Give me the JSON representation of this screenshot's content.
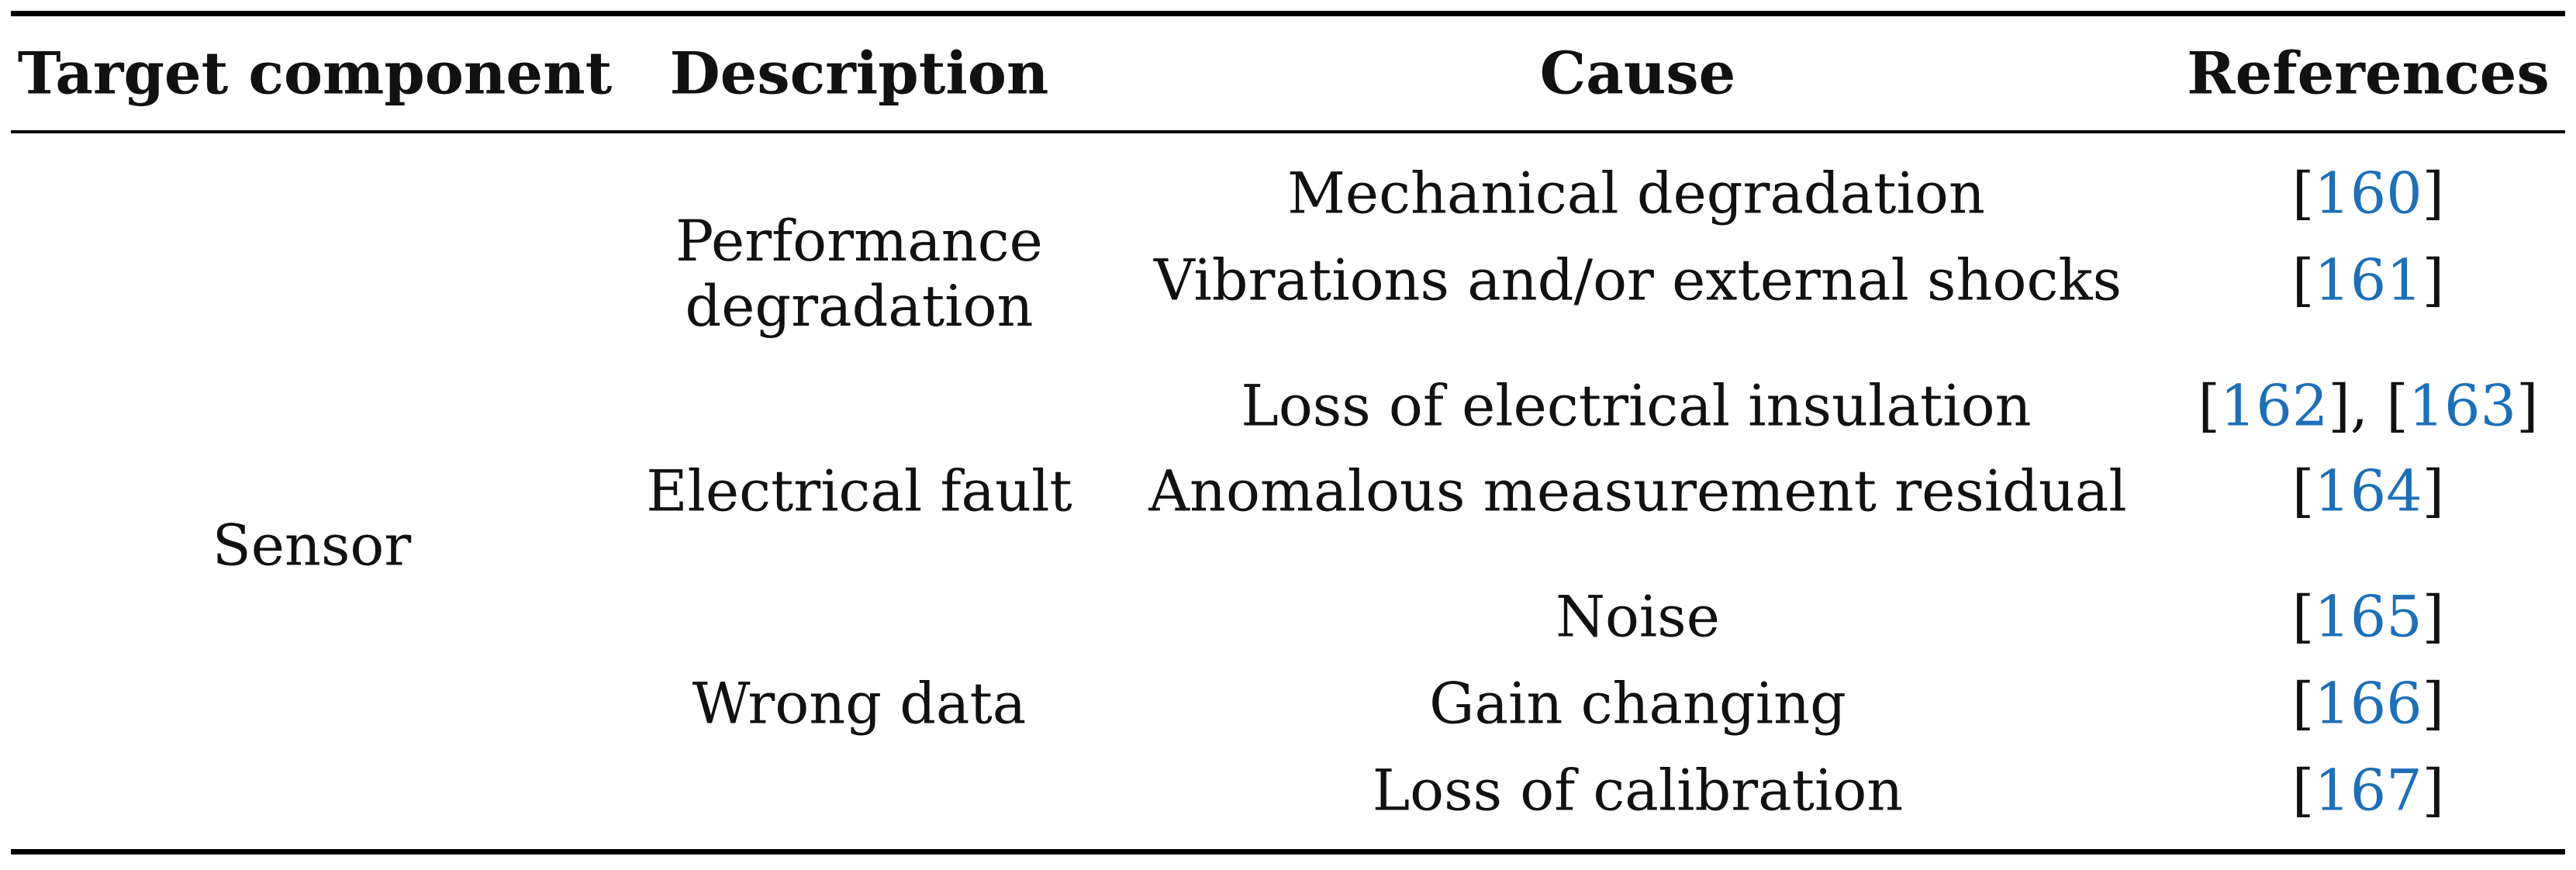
{
  "table": {
    "headers": [
      "Target component",
      "Description",
      "Cause",
      "References"
    ],
    "component": "Sensor",
    "groups": [
      {
        "description_lines": [
          "Performance",
          "degradation"
        ],
        "rows": [
          {
            "cause": "Mechanical degradation",
            "refs": [
              "160"
            ]
          },
          {
            "cause": "Vibrations and/or external shocks",
            "refs": [
              "161"
            ]
          }
        ]
      },
      {
        "description_lines": [
          "Electrical fault"
        ],
        "rows": [
          {
            "cause": "Loss of electrical insulation",
            "refs": [
              "162",
              "163"
            ]
          },
          {
            "cause": "Anomalous measurement residual",
            "refs": [
              "164"
            ]
          }
        ]
      },
      {
        "description_lines": [
          "Wrong data"
        ],
        "rows": [
          {
            "cause": "Noise",
            "refs": [
              "165"
            ]
          },
          {
            "cause": "Gain changing",
            "refs": [
              "166"
            ]
          },
          {
            "cause": "Loss of calibration",
            "refs": [
              "167"
            ]
          }
        ]
      }
    ]
  },
  "colors": {
    "citation": "#1d6fb8",
    "text": "#111111",
    "rule": "#000000"
  }
}
